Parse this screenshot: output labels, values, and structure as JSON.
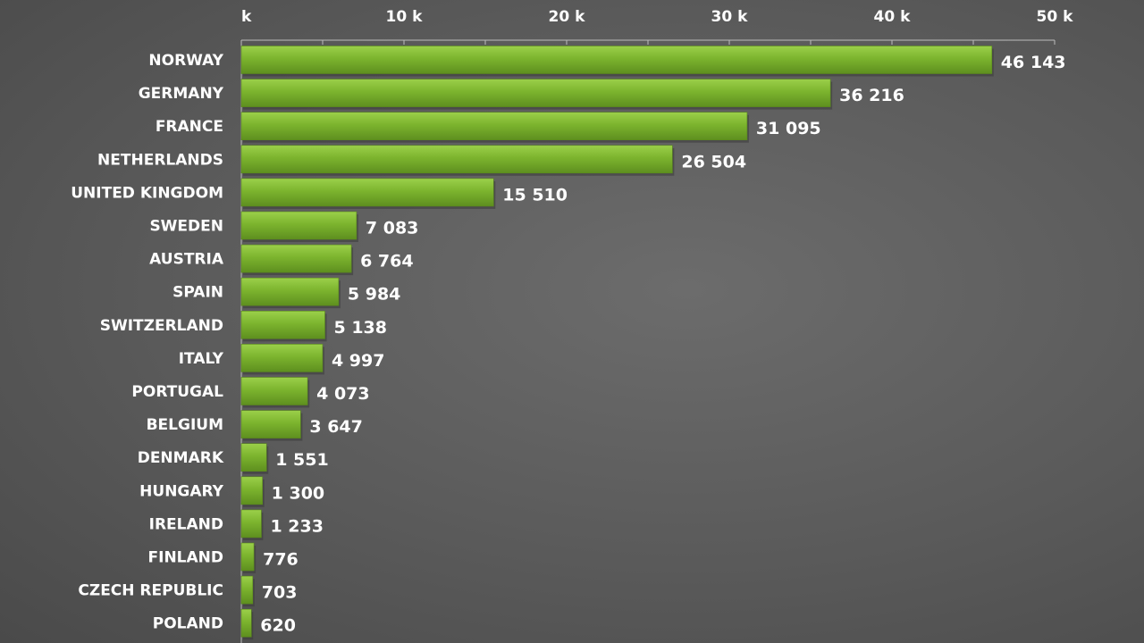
{
  "chart_data": {
    "type": "bar",
    "orientation": "horizontal",
    "title": "",
    "xlabel": "",
    "ylabel": "",
    "xlim": [
      0,
      50000
    ],
    "x_ticks": [
      0,
      10000,
      20000,
      30000,
      40000,
      50000
    ],
    "x_tick_labels": [
      "k",
      "10 k",
      "20 k",
      "30 k",
      "40 k",
      "50 k"
    ],
    "x_axis_position": "top",
    "grid": false,
    "legend": "none",
    "bar_color": "#7cb42e",
    "categories": [
      "NORWAY",
      "GERMANY",
      "FRANCE",
      "NETHERLANDS",
      "UNITED KINGDOM",
      "SWEDEN",
      "AUSTRIA",
      "SPAIN",
      "SWITZERLAND",
      "ITALY",
      "PORTUGAL",
      "BELGIUM",
      "DENMARK",
      "HUNGARY",
      "IRELAND",
      "FINLAND",
      "CZECH REPUBLIC",
      "POLAND"
    ],
    "values": [
      46143,
      36216,
      31095,
      26504,
      15510,
      7083,
      6764,
      5984,
      5138,
      4997,
      4073,
      3647,
      1551,
      1300,
      1233,
      776,
      703,
      620
    ],
    "value_labels": [
      "46 143",
      "36 216",
      "31 095",
      "26 504",
      "15 510",
      "7 083",
      "6 764",
      "5 984",
      "5 138",
      "4 997",
      "4 073",
      "3 647",
      "1 551",
      "1 300",
      "1 233",
      "776",
      "703",
      "620"
    ]
  }
}
